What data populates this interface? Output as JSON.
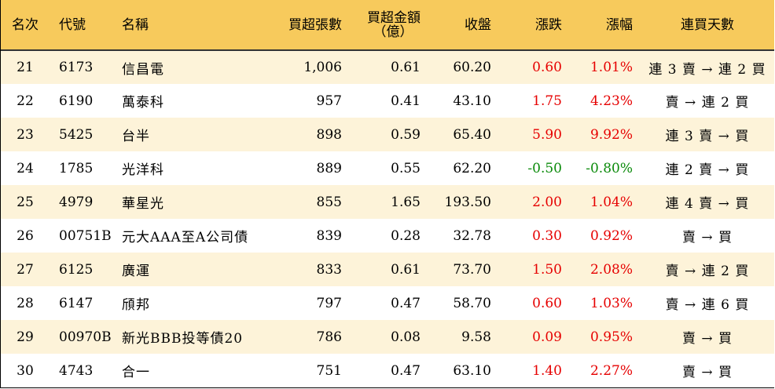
{
  "headers": {
    "rank": "名次",
    "code": "代號",
    "name": "名稱",
    "net_buy_lots": "買超張數",
    "net_buy_amount_line1": "買超金額",
    "net_buy_amount_line2": "（億）",
    "close": "收盤",
    "change": "漲跌",
    "change_pct": "漲幅",
    "consecutive_days": "連買天數"
  },
  "colors": {
    "header_bg": "#f7ca5c",
    "row_alt_bg": "#fdf3d9",
    "up": "#e60000",
    "down": "#0a8a0a"
  },
  "rows": [
    {
      "rank": "21",
      "code": "6173",
      "name": "信昌電",
      "lots": "1,006",
      "amount": "0.61",
      "close": "60.20",
      "change": "0.60",
      "pct": "1.01%",
      "trend": "連 3 賣 → 連 2 買",
      "dir": "up"
    },
    {
      "rank": "22",
      "code": "6190",
      "name": "萬泰科",
      "lots": "957",
      "amount": "0.41",
      "close": "43.10",
      "change": "1.75",
      "pct": "4.23%",
      "trend": "賣 → 連 2 買",
      "dir": "up"
    },
    {
      "rank": "23",
      "code": "5425",
      "name": "台半",
      "lots": "898",
      "amount": "0.59",
      "close": "65.40",
      "change": "5.90",
      "pct": "9.92%",
      "trend": "連 3 賣 → 買",
      "dir": "up"
    },
    {
      "rank": "24",
      "code": "1785",
      "name": "光洋科",
      "lots": "889",
      "amount": "0.55",
      "close": "62.20",
      "change": "-0.50",
      "pct": "-0.80%",
      "trend": "連 2 賣 → 買",
      "dir": "down"
    },
    {
      "rank": "25",
      "code": "4979",
      "name": "華星光",
      "lots": "855",
      "amount": "1.65",
      "close": "193.50",
      "change": "2.00",
      "pct": "1.04%",
      "trend": "連 4 賣 → 買",
      "dir": "up"
    },
    {
      "rank": "26",
      "code": "00751B",
      "name": "元大AAA至A公司債",
      "lots": "839",
      "amount": "0.28",
      "close": "32.78",
      "change": "0.30",
      "pct": "0.92%",
      "trend": "賣 → 買",
      "dir": "up"
    },
    {
      "rank": "27",
      "code": "6125",
      "name": "廣運",
      "lots": "833",
      "amount": "0.61",
      "close": "73.70",
      "change": "1.50",
      "pct": "2.08%",
      "trend": "賣 → 連 2 買",
      "dir": "up"
    },
    {
      "rank": "28",
      "code": "6147",
      "name": "頎邦",
      "lots": "797",
      "amount": "0.47",
      "close": "58.70",
      "change": "0.60",
      "pct": "1.03%",
      "trend": "賣 → 連 6 買",
      "dir": "up"
    },
    {
      "rank": "29",
      "code": "00970B",
      "name": "新光BBB投等債20",
      "lots": "786",
      "amount": "0.08",
      "close": "9.58",
      "change": "0.09",
      "pct": "0.95%",
      "trend": "賣 → 買",
      "dir": "up"
    },
    {
      "rank": "30",
      "code": "4743",
      "name": "合一",
      "lots": "751",
      "amount": "0.47",
      "close": "63.10",
      "change": "1.40",
      "pct": "2.27%",
      "trend": "賣 → 買",
      "dir": "up"
    }
  ]
}
